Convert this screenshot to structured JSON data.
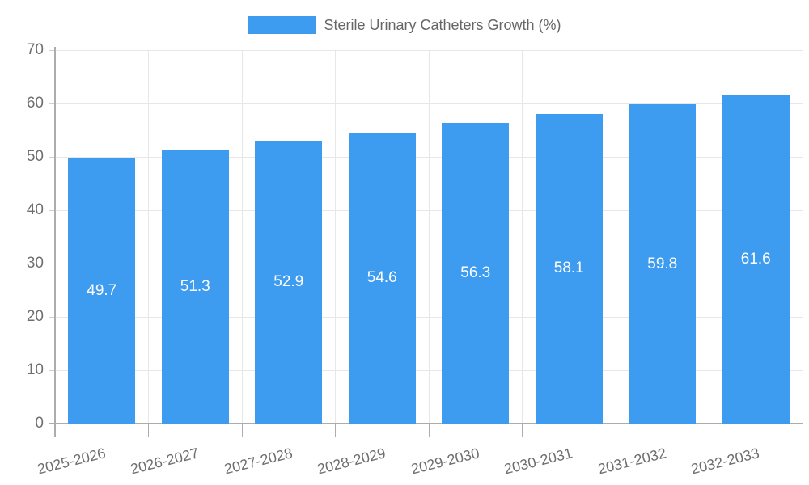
{
  "chart_data": {
    "type": "bar",
    "title": "Sterile Urinary Catheters Growth (%)",
    "legend_label": "Sterile Urinary Catheters Growth (%)",
    "legend_position": "top",
    "categories": [
      "2025-2026",
      "2026-2027",
      "2027-2028",
      "2028-2029",
      "2029-2030",
      "2030-2031",
      "2031-2032",
      "2032-2033"
    ],
    "values": [
      49.7,
      51.3,
      52.9,
      54.6,
      56.3,
      58.1,
      59.8,
      61.6
    ],
    "value_labels": [
      "49.7",
      "51.3",
      "52.9",
      "54.6",
      "56.3",
      "58.1",
      "59.8",
      "61.6"
    ],
    "xlabel": "",
    "ylabel": "",
    "ylim": [
      0,
      70
    ],
    "yticks": [
      0,
      10,
      20,
      30,
      40,
      50,
      60,
      70
    ],
    "grid": true,
    "colors": {
      "bar": "#3D9CF0",
      "bar_label_text": "#FFFFFF",
      "grid_line": "#E7E7E7",
      "axis_line": "#ACACAC",
      "tick_label_text": "#6E6E6E",
      "legend_text": "#666666",
      "background": "#FFFFFF"
    }
  }
}
